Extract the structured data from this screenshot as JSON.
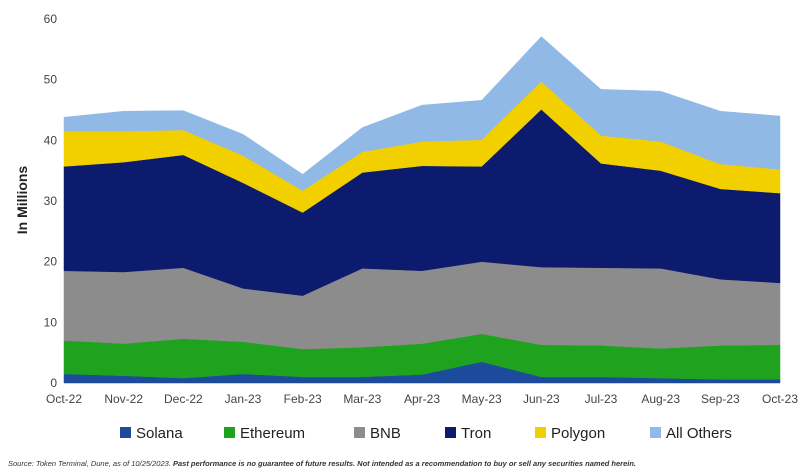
{
  "chart_data": {
    "type": "area",
    "stacked": true,
    "ylabel": "In Millions",
    "ylim": [
      0,
      60
    ],
    "yticks": [
      0,
      10,
      20,
      30,
      40,
      50,
      60
    ],
    "grid": false,
    "legend_position": "bottom",
    "categories": [
      "Oct-22",
      "Nov-22",
      "Dec-22",
      "Jan-23",
      "Feb-23",
      "Mar-23",
      "Apr-23",
      "May-23",
      "Jun-23",
      "Jul-23",
      "Aug-23",
      "Sep-23",
      "Oct-23"
    ],
    "series": [
      {
        "name": "Solana",
        "color": "#1c4b9b",
        "values": [
          1.5,
          1.2,
          0.8,
          1.5,
          1.0,
          1.0,
          1.4,
          3.5,
          1.0,
          1.0,
          0.8,
          0.6,
          0.6
        ]
      },
      {
        "name": "Ethereum",
        "color": "#1fa31f",
        "values": [
          5.5,
          5.3,
          6.5,
          5.3,
          4.6,
          4.9,
          5.1,
          4.6,
          5.3,
          5.2,
          4.9,
          5.6,
          5.7
        ]
      },
      {
        "name": "BNB",
        "color": "#8c8c8c",
        "values": [
          11.5,
          11.8,
          11.7,
          8.8,
          8.8,
          13.0,
          12.0,
          11.9,
          12.8,
          12.8,
          13.2,
          10.9,
          10.2
        ]
      },
      {
        "name": "Tron",
        "color": "#0d1b6e",
        "values": [
          17.2,
          18.1,
          18.6,
          17.4,
          13.7,
          15.8,
          17.3,
          15.7,
          26.0,
          17.2,
          16.1,
          14.9,
          14.8
        ]
      },
      {
        "name": "Polygon",
        "color": "#f2d000",
        "values": [
          5.8,
          5.1,
          4.1,
          4.5,
          3.6,
          3.4,
          4.0,
          4.4,
          4.6,
          4.6,
          4.8,
          4.1,
          3.9
        ]
      },
      {
        "name": "All Others",
        "color": "#90b9e6",
        "values": [
          2.3,
          3.3,
          3.2,
          3.5,
          2.7,
          4.0,
          6.0,
          6.5,
          7.4,
          7.6,
          8.3,
          8.7,
          8.8
        ]
      }
    ]
  },
  "footnote": {
    "source": "Source: Token Terminal, Dune, as of 10/25/2023. ",
    "disclaimer": "Past performance is no guarantee of future results. Not intended as a recommendation to buy or sell any securities named herein."
  }
}
